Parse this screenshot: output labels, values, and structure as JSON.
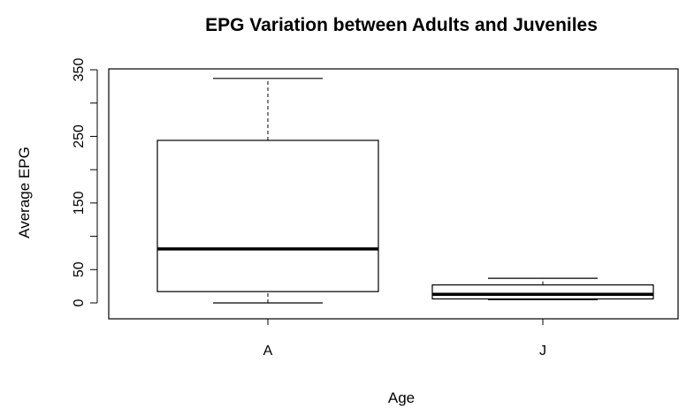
{
  "chart_data": {
    "type": "boxplot",
    "title": "EPG Variation between Adults and Juveniles",
    "xlabel": "Age",
    "ylabel": "Average EPG",
    "ylim": [
      0,
      350
    ],
    "y_ticks": [
      0,
      50,
      150,
      250,
      350
    ],
    "categories": [
      "A",
      "J"
    ],
    "boxes": [
      {
        "category": "A",
        "min": 0,
        "q1": 17,
        "median": 81,
        "q3": 244,
        "max": 337
      },
      {
        "category": "J",
        "min": 5,
        "q1": 6,
        "median": 13,
        "q3": 27,
        "max": 37
      }
    ],
    "grid": false,
    "legend": "none"
  }
}
